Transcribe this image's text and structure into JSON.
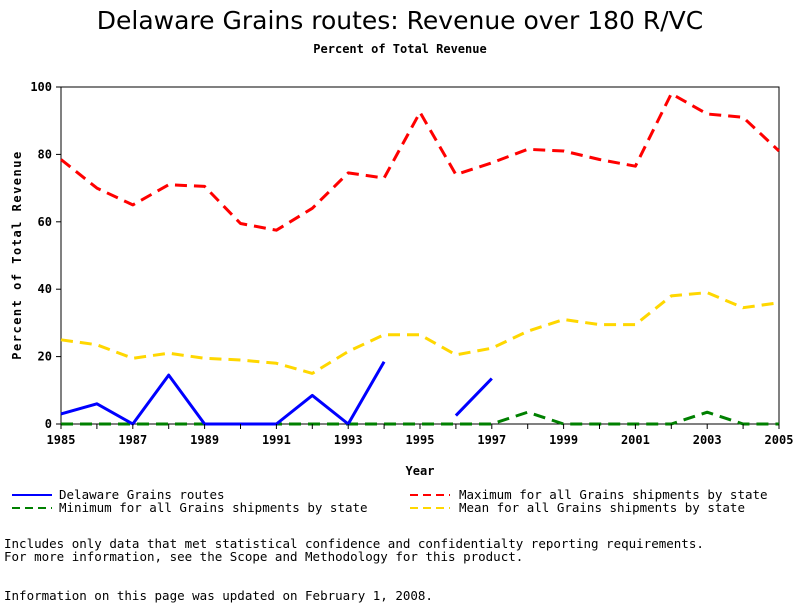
{
  "chart_data": {
    "type": "line",
    "title": "Delaware Grains routes: Revenue over 180 R/VC",
    "subtitle": "Percent of Total Revenue",
    "xlabel": "Year",
    "ylabel": "Percent of Total Revenue",
    "xlim": [
      1985,
      2005
    ],
    "ylim": [
      0,
      100
    ],
    "xticks": [
      "1985",
      "1987",
      "1989",
      "1991",
      "1993",
      "1995",
      "1997",
      "1999",
      "2001",
      "2003",
      "2005"
    ],
    "yticks": [
      "0",
      "20",
      "40",
      "60",
      "80",
      "100"
    ],
    "x": [
      1985,
      1986,
      1987,
      1988,
      1989,
      1990,
      1991,
      1992,
      1993,
      1994,
      1995,
      1996,
      1997,
      1998,
      1999,
      2000,
      2001,
      2002,
      2003,
      2004,
      2005
    ],
    "series": [
      {
        "name": "Delaware Grains routes",
        "color": "#0000ff",
        "style": "solid",
        "values": [
          3,
          6,
          0,
          14.5,
          0,
          0,
          0,
          8.5,
          0,
          18.5,
          null,
          2.5,
          13.5,
          null,
          null,
          null,
          null,
          null,
          null,
          null,
          null
        ]
      },
      {
        "name": "Maximum for all Grains shipments by state",
        "color": "#ff0000",
        "style": "dashed",
        "values": [
          78.5,
          70,
          65,
          71,
          70.5,
          59.5,
          57.5,
          64,
          74.5,
          73,
          92.5,
          74,
          77.5,
          81.5,
          81,
          78.5,
          76.5,
          98,
          92,
          91,
          81
        ]
      },
      {
        "name": "Minimum for all Grains shipments by state",
        "color": "#008000",
        "style": "dashed",
        "values": [
          0,
          0,
          0,
          0,
          0,
          0,
          0,
          0,
          0,
          0,
          0,
          0,
          0,
          3.5,
          0,
          0,
          0,
          0,
          3.5,
          0,
          0
        ]
      },
      {
        "name": "Mean for all Grains shipments by state",
        "color": "#ffd700",
        "style": "dashed",
        "values": [
          25,
          23.5,
          19.5,
          21,
          19.5,
          19,
          18,
          15,
          21.5,
          26.5,
          26.5,
          20.5,
          22.5,
          27.5,
          31,
          29.5,
          29.5,
          38,
          39,
          34.5,
          36
        ]
      }
    ],
    "legend_placement": "bottom",
    "grid": false
  },
  "notes": {
    "line1": "Includes only data that met statistical confidence and confidentialty reporting requirements.",
    "line2": "For more information, see the Scope and Methodology for this product.",
    "updated": "Information on this page was updated on February 1, 2008."
  }
}
